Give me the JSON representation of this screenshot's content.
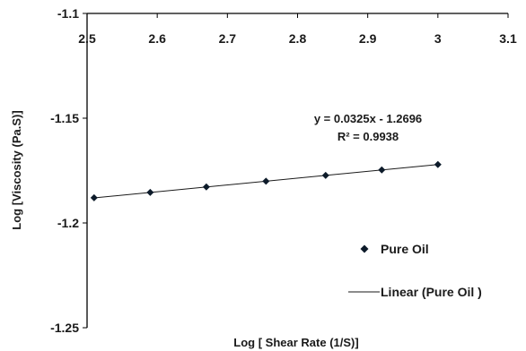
{
  "chart_data": {
    "type": "scatter",
    "xlabel": "Log [ Shear Rate (1/S)]",
    "ylabel": "Log [Viscosity (Pa.S)]",
    "xlim": [
      2.5,
      3.1
    ],
    "ylim": [
      -1.25,
      -1.1
    ],
    "x_ticks": [
      "2.5",
      "2.6",
      "2.7",
      "2.8",
      "2.9",
      "3",
      "3.1"
    ],
    "y_ticks": [
      "-1.1",
      "-1.15",
      "-1.2",
      "-1.25"
    ],
    "x_axis_position": "top",
    "grid": false,
    "legend_position": "right",
    "series": [
      {
        "name": "Pure Oil",
        "marker": "diamond",
        "color": "#0d1b2a",
        "x": [
          2.51,
          2.59,
          2.67,
          2.755,
          2.84,
          2.92,
          3.0
        ],
        "y": [
          -1.188,
          -1.1854,
          -1.1828,
          -1.1801,
          -1.1773,
          -1.1747,
          -1.1721
        ]
      }
    ],
    "trendline": {
      "name": "Linear (Pure Oil )",
      "slope": 0.0325,
      "intercept": -1.2696,
      "equation": "y = 0.0325x - 1.2696",
      "r_squared": "R² = 0.9938",
      "color": "#1a1a1a"
    }
  }
}
